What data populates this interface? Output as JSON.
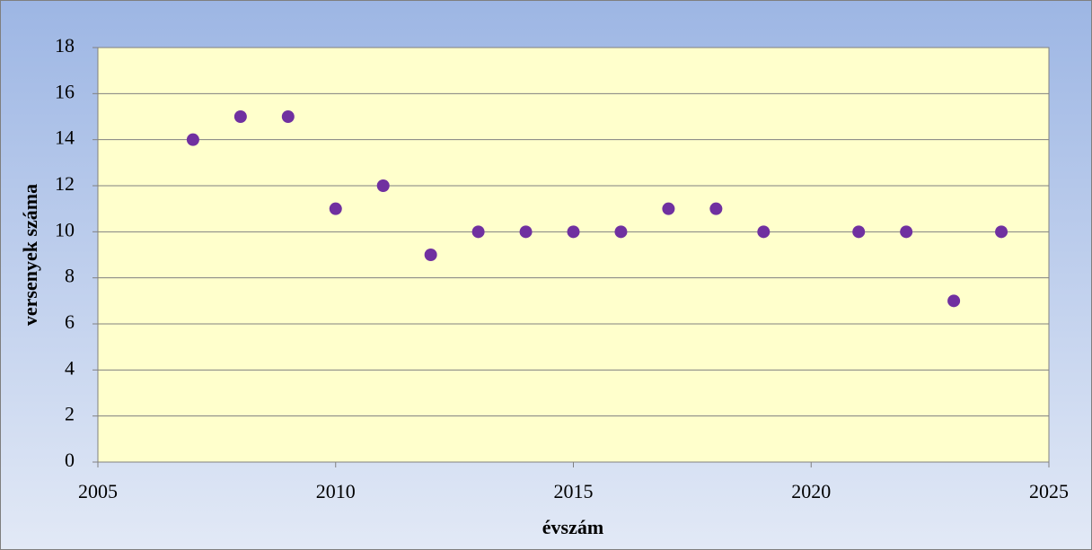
{
  "chart_data": {
    "type": "scatter",
    "x_label": "évszám",
    "y_label": "versenyek száma",
    "x": [
      2007,
      2008,
      2009,
      2010,
      2011,
      2012,
      2013,
      2014,
      2015,
      2016,
      2017,
      2018,
      2019,
      2021,
      2022,
      2023,
      2024
    ],
    "values": [
      14,
      15,
      15,
      11,
      12,
      9,
      10,
      10,
      10,
      10,
      11,
      11,
      10,
      10,
      10,
      7,
      10
    ],
    "color": "#7030a0",
    "xlim": [
      2005,
      2025
    ],
    "xticks": [
      2005,
      2010,
      2015,
      2020,
      2025
    ],
    "ylim": [
      0,
      18
    ],
    "yticks": [
      0,
      2,
      4,
      6,
      8,
      10,
      12,
      14,
      16,
      18
    ],
    "grid": true
  }
}
